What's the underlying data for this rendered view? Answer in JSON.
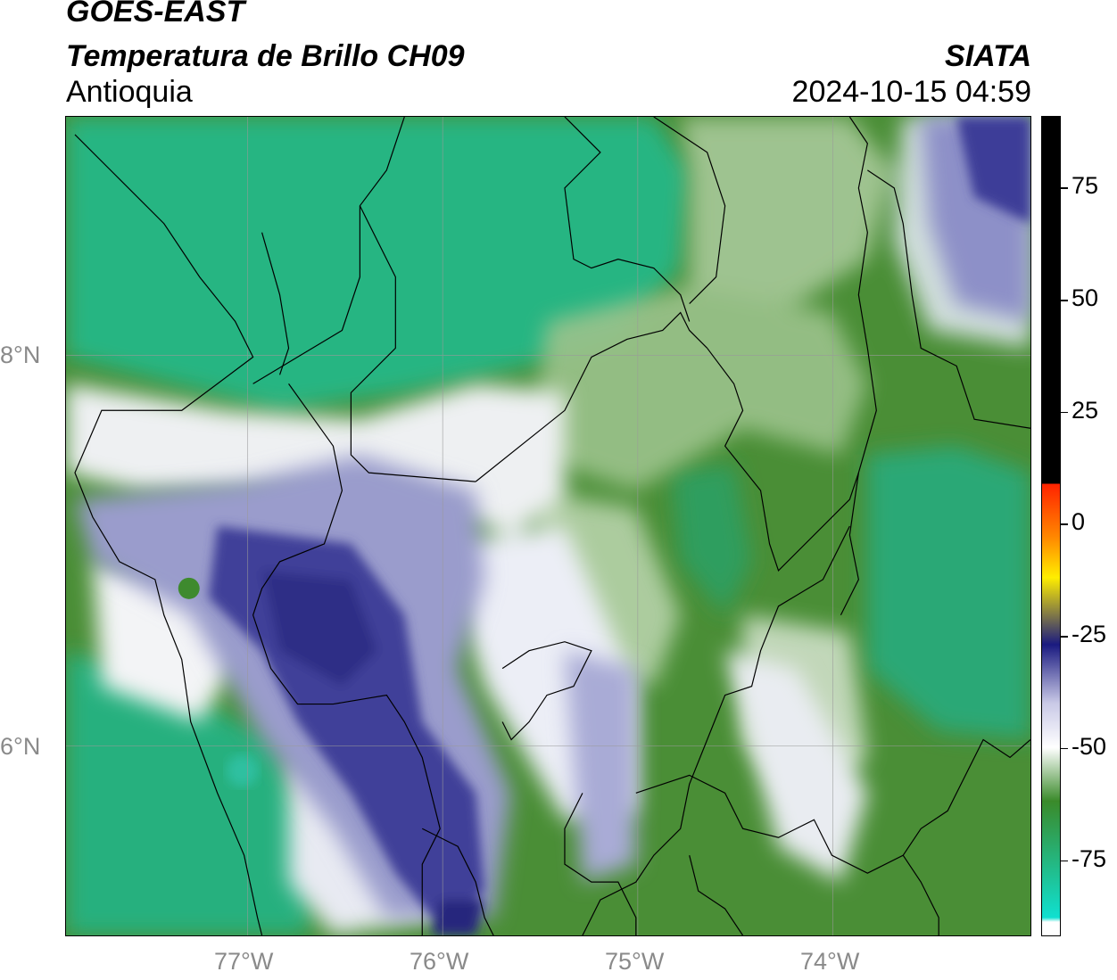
{
  "header": {
    "satellite": "GOES-EAST",
    "product": "Temperatura de Brillo CH09",
    "region": "Antioquia",
    "brand": "SIATA",
    "timestamp": "2024-10-15 04:59"
  },
  "map": {
    "lat_labels": [
      "8°N",
      "6°N"
    ],
    "lon_labels": [
      "77°W",
      "76°W",
      "75°W",
      "74°W"
    ]
  },
  "colorbar": {
    "ticks": [
      "75",
      "50",
      "25",
      "0",
      "-25",
      "-50",
      "-75"
    ],
    "range": [
      -92,
      91
    ],
    "colors": {
      "warm_top": "#000000",
      "red": "#ff2200",
      "orange": "#ff8800",
      "yellow": "#ffee00",
      "navy": "#1a1a80",
      "lavender": "#c8c8e6",
      "white": "#ffffff",
      "green": "#3a8a2a",
      "cyan": "#10e0d0"
    }
  },
  "colors": {
    "cold_cloud": "#3b3d9a",
    "cloud_white": "#f4f4f8",
    "clear_green": "#4a8e36",
    "sea_teal": "#1fb98a"
  }
}
